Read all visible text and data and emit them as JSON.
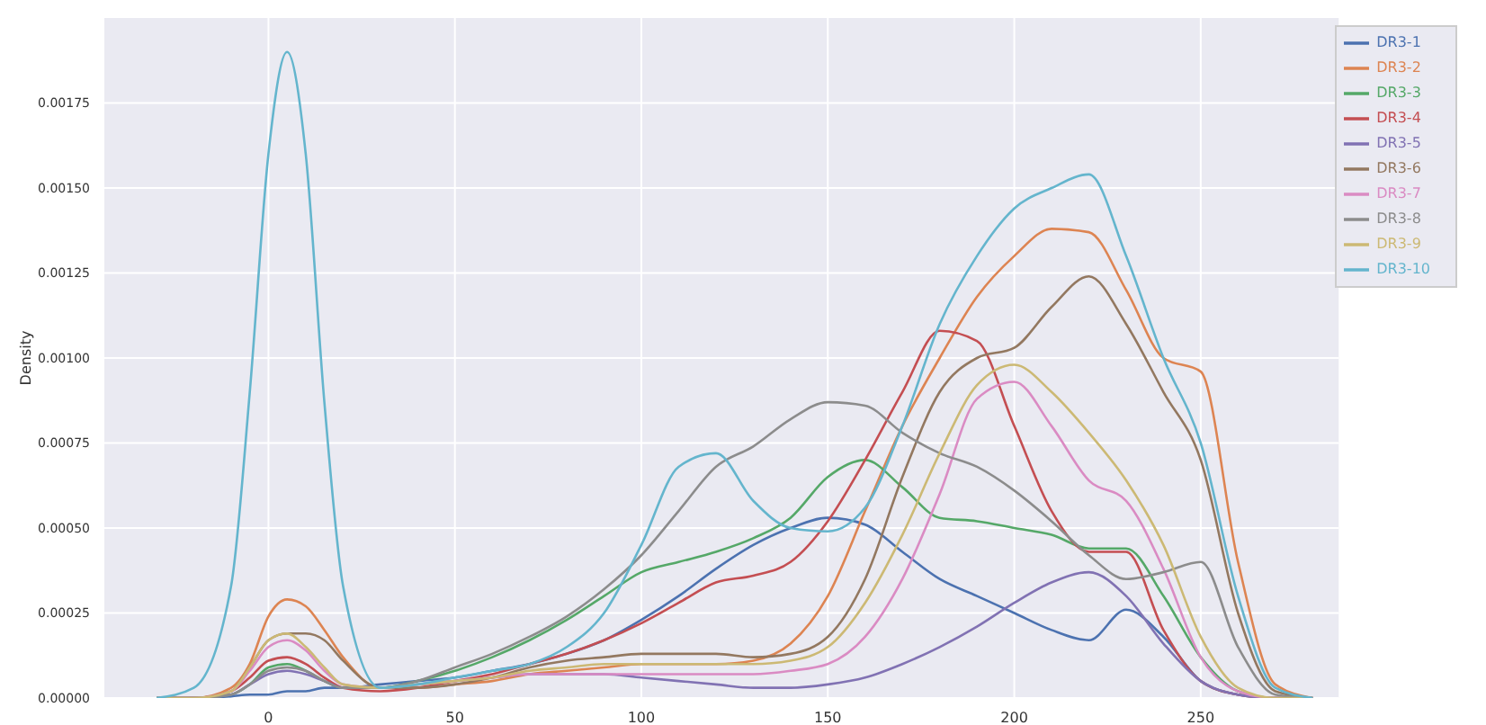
{
  "chart_data": {
    "type": "line",
    "ylabel": "Density",
    "x": [
      -30,
      -20,
      -10,
      -5,
      0,
      5,
      10,
      15,
      20,
      30,
      40,
      50,
      60,
      70,
      80,
      90,
      100,
      110,
      120,
      130,
      140,
      150,
      160,
      170,
      180,
      190,
      200,
      210,
      220,
      230,
      240,
      250,
      260,
      270,
      280
    ],
    "series": [
      {
        "name": "DR3-1",
        "color": "#4c72b0",
        "values": [
          0,
          0,
          5e-06,
          1e-05,
          1e-05,
          2e-05,
          2e-05,
          3e-05,
          3e-05,
          4e-05,
          5e-05,
          6e-05,
          8e-05,
          0.0001,
          0.00013,
          0.00017,
          0.00023,
          0.0003,
          0.00038,
          0.00045,
          0.0005,
          0.00053,
          0.00051,
          0.00043,
          0.00035,
          0.0003,
          0.00025,
          0.0002,
          0.00017,
          0.00026,
          0.00018,
          5e-05,
          1e-05,
          0,
          0
        ]
      },
      {
        "name": "DR3-2",
        "color": "#dd8452",
        "values": [
          0,
          0,
          3e-05,
          0.0001,
          0.00024,
          0.00029,
          0.00027,
          0.0002,
          0.00012,
          3e-05,
          3e-05,
          4e-05,
          5e-05,
          7e-05,
          8e-05,
          9e-05,
          0.0001,
          0.0001,
          0.0001,
          0.00011,
          0.00016,
          0.0003,
          0.00055,
          0.0008,
          0.001,
          0.00118,
          0.0013,
          0.00138,
          0.00137,
          0.0012,
          0.001,
          0.00096,
          0.0004,
          4e-05,
          0
        ]
      },
      {
        "name": "DR3-3",
        "color": "#55a868",
        "values": [
          0,
          0,
          1e-05,
          4e-05,
          9e-05,
          0.0001,
          8e-05,
          5e-05,
          3e-05,
          3e-05,
          5e-05,
          8e-05,
          0.00012,
          0.00017,
          0.00023,
          0.0003,
          0.00037,
          0.0004,
          0.00043,
          0.00047,
          0.00053,
          0.00065,
          0.0007,
          0.00062,
          0.00053,
          0.00052,
          0.0005,
          0.00048,
          0.00044,
          0.00044,
          0.0003,
          0.00012,
          2e-05,
          0,
          0
        ]
      },
      {
        "name": "DR3-4",
        "color": "#c44e52",
        "values": [
          0,
          0,
          2e-05,
          6e-05,
          0.00011,
          0.00012,
          0.0001,
          6e-05,
          3e-05,
          2e-05,
          3e-05,
          5e-05,
          7e-05,
          0.0001,
          0.00013,
          0.00017,
          0.00022,
          0.00028,
          0.00034,
          0.00036,
          0.0004,
          0.00052,
          0.0007,
          0.0009,
          0.00108,
          0.00105,
          0.0008,
          0.00055,
          0.00043,
          0.00043,
          0.0002,
          5e-05,
          1e-05,
          0,
          0
        ]
      },
      {
        "name": "DR3-5",
        "color": "#8172b3",
        "values": [
          0,
          0,
          1e-05,
          4e-05,
          7e-05,
          8e-05,
          7e-05,
          5e-05,
          3e-05,
          3e-05,
          4e-05,
          5e-05,
          6e-05,
          7e-05,
          7e-05,
          7e-05,
          6e-05,
          5e-05,
          4e-05,
          3e-05,
          3e-05,
          4e-05,
          6e-05,
          0.0001,
          0.00015,
          0.00021,
          0.00028,
          0.00034,
          0.00037,
          0.0003,
          0.00016,
          5e-05,
          1e-05,
          0,
          0
        ]
      },
      {
        "name": "DR3-6",
        "color": "#937860",
        "values": [
          0,
          0,
          2e-05,
          9e-05,
          0.00017,
          0.00019,
          0.00019,
          0.00017,
          0.00011,
          3e-05,
          3e-05,
          4e-05,
          6e-05,
          9e-05,
          0.00011,
          0.00012,
          0.00013,
          0.00013,
          0.00013,
          0.00012,
          0.00013,
          0.00018,
          0.00035,
          0.00065,
          0.0009,
          0.001,
          0.00103,
          0.00115,
          0.00124,
          0.0011,
          0.0009,
          0.0007,
          0.00025,
          2e-05,
          0
        ]
      },
      {
        "name": "DR3-7",
        "color": "#da8bc3",
        "values": [
          0,
          0,
          2e-05,
          8e-05,
          0.00015,
          0.00017,
          0.00014,
          8e-05,
          4e-05,
          3e-05,
          4e-05,
          5e-05,
          6e-05,
          7e-05,
          7e-05,
          7e-05,
          7e-05,
          7e-05,
          7e-05,
          7e-05,
          8e-05,
          0.0001,
          0.00018,
          0.00035,
          0.0006,
          0.00088,
          0.00093,
          0.0008,
          0.00064,
          0.00058,
          0.00038,
          0.00012,
          2e-05,
          0,
          0
        ]
      },
      {
        "name": "DR3-8",
        "color": "#8c8c8c",
        "values": [
          0,
          0,
          1e-05,
          4e-05,
          8e-05,
          9e-05,
          8e-05,
          5e-05,
          3e-05,
          3e-05,
          5e-05,
          9e-05,
          0.00013,
          0.00018,
          0.00024,
          0.00032,
          0.00042,
          0.00055,
          0.00068,
          0.00074,
          0.00082,
          0.00087,
          0.00086,
          0.00078,
          0.00072,
          0.00068,
          0.00061,
          0.00052,
          0.00042,
          0.00035,
          0.00037,
          0.0004,
          0.00015,
          1e-05,
          0
        ]
      },
      {
        "name": "DR3-9",
        "color": "#ccb974",
        "values": [
          0,
          0,
          2e-05,
          9e-05,
          0.00017,
          0.00019,
          0.00015,
          9e-05,
          4e-05,
          3e-05,
          4e-05,
          5e-05,
          6e-05,
          8e-05,
          9e-05,
          0.0001,
          0.0001,
          0.0001,
          0.0001,
          0.0001,
          0.00011,
          0.00015,
          0.00028,
          0.00048,
          0.00072,
          0.00092,
          0.00098,
          0.0009,
          0.00078,
          0.00064,
          0.00045,
          0.00018,
          3e-05,
          0,
          0
        ]
      },
      {
        "name": "DR3-10",
        "color": "#64b5cd",
        "values": [
          0,
          3e-05,
          0.00033,
          0.0009,
          0.0016,
          0.0019,
          0.0016,
          0.00087,
          0.00033,
          3e-05,
          4e-05,
          6e-05,
          8e-05,
          0.0001,
          0.00015,
          0.00025,
          0.00045,
          0.00068,
          0.00072,
          0.00058,
          0.0005,
          0.00049,
          0.00056,
          0.0008,
          0.0011,
          0.0013,
          0.00144,
          0.0015,
          0.00154,
          0.0013,
          0.001,
          0.00075,
          0.0003,
          3e-05,
          0
        ]
      }
    ],
    "xlim": [
      -44,
      287
    ],
    "xticks": [
      0,
      50,
      100,
      150,
      200,
      250
    ],
    "ylim": [
      0,
      0.002
    ],
    "yticks": [
      {
        "value": 0,
        "label": "0.00000"
      },
      {
        "value": 0.00025,
        "label": "0.00025"
      },
      {
        "value": 0.0005,
        "label": "0.00050"
      },
      {
        "value": 0.00075,
        "label": "0.00075"
      },
      {
        "value": 0.001,
        "label": "0.00100"
      },
      {
        "value": 0.00125,
        "label": "0.00125"
      },
      {
        "value": 0.0015,
        "label": "0.00150"
      },
      {
        "value": 0.00175,
        "label": "0.00175"
      }
    ],
    "grid": true,
    "legend": "top right",
    "marker": "none",
    "line_style": "solid"
  }
}
